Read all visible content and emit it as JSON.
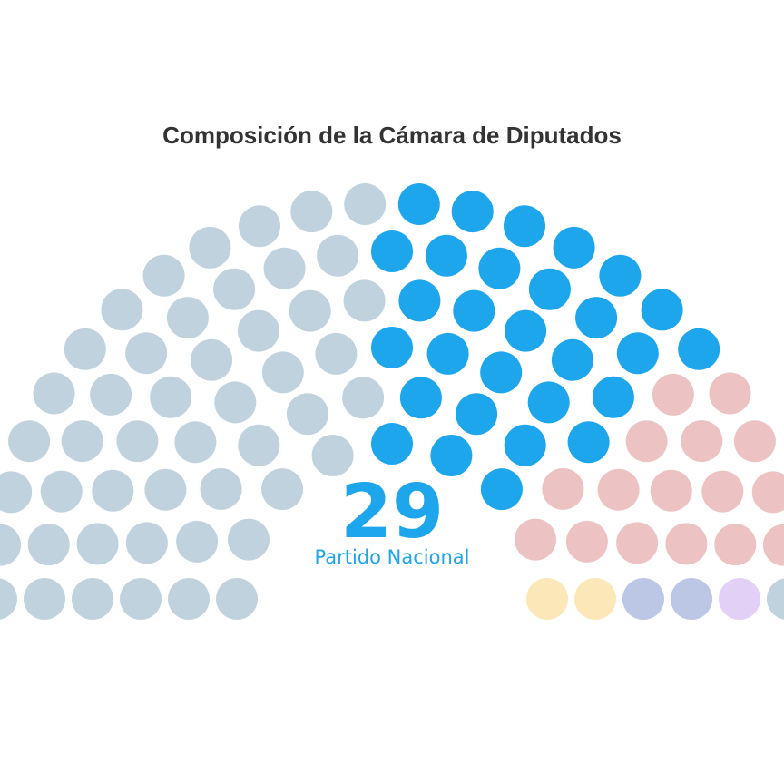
{
  "chart_data": {
    "type": "parliament",
    "title": "Composición de la Cámara de Diputados",
    "total_seats": 99,
    "highlighted": {
      "value": "29",
      "label": "Partido Nacional"
    },
    "series": [
      {
        "color": "#c1d2df",
        "values": [
          48
        ],
        "highlighted": false
      },
      {
        "name": "Partido Nacional",
        "color": "#1ea6ec",
        "values": [
          29
        ],
        "highlighted": true
      },
      {
        "color": "#edc2c2",
        "values": [
          16
        ],
        "highlighted": false
      },
      {
        "color": "#fbe7b8",
        "values": [
          2
        ],
        "highlighted": false
      },
      {
        "color": "#bcc7e6",
        "values": [
          2
        ],
        "highlighted": false
      },
      {
        "color": "#e3d0f7",
        "values": [
          1
        ],
        "highlighted": false
      },
      {
        "color": "#c1d2df",
        "values": [
          1
        ],
        "highlighted": false
      }
    ]
  }
}
